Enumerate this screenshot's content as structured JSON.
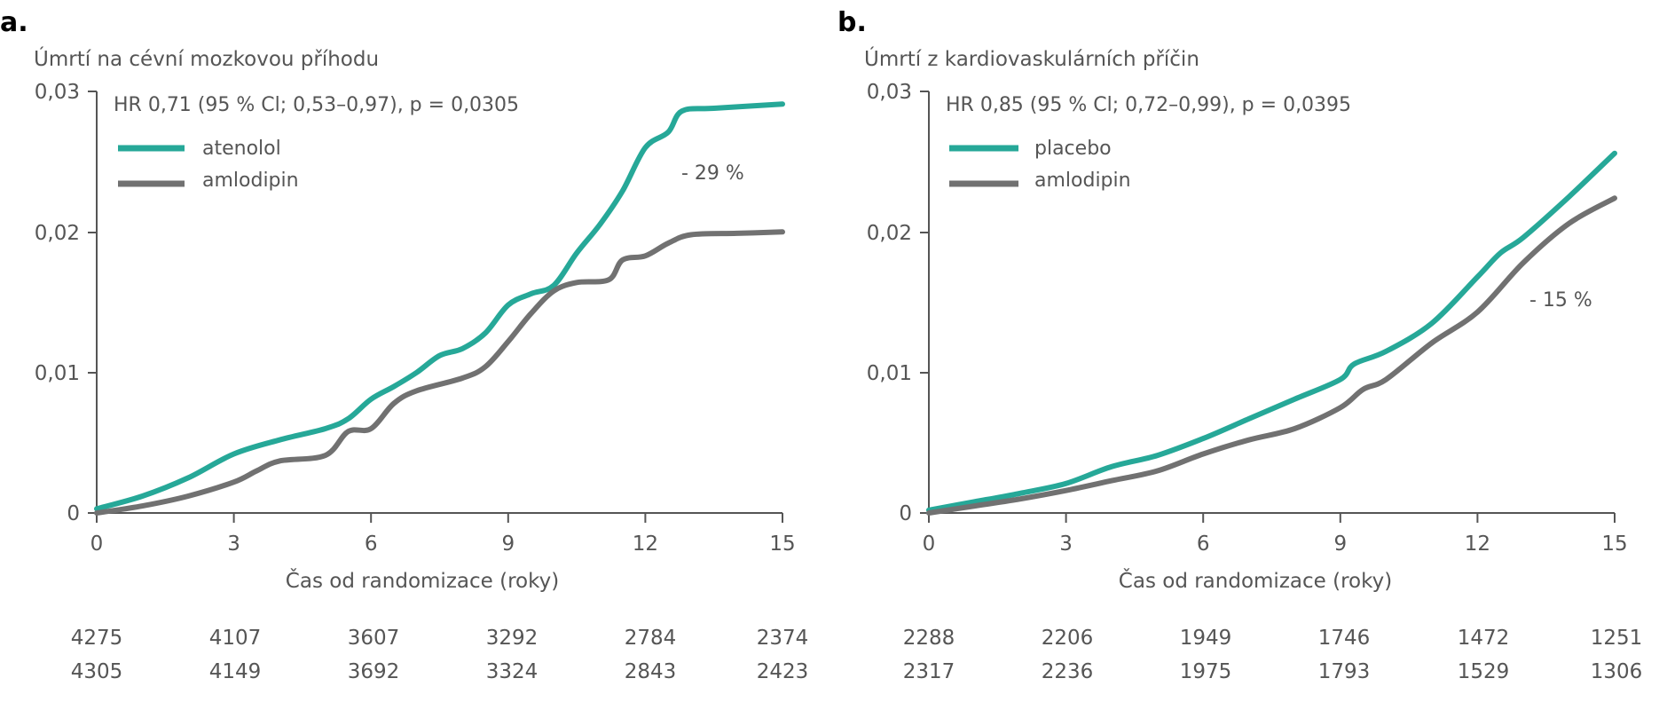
{
  "colors": {
    "teal": "#26a898",
    "gray": "#717171",
    "text": "#555555",
    "axis": "#555555"
  },
  "chart_data": [
    {
      "type": "line",
      "panel_letter": "a.",
      "ylabel": "Úmrtí na cévní mozkovou příhodu",
      "xlabel": "Čas od randomizace (roky)",
      "xlim": [
        0,
        15
      ],
      "ylim": [
        0,
        0.03
      ],
      "x_ticks": [
        0,
        3,
        6,
        9,
        12,
        15
      ],
      "x_tick_labels": [
        "0",
        "3",
        "6",
        "9",
        "12",
        "15"
      ],
      "y_ticks": [
        0,
        0.01,
        0.02,
        0.03
      ],
      "y_tick_labels": [
        "0",
        "0,01",
        "0,02",
        "0,03"
      ],
      "hr_text": "HR 0,71 (95 % Cl; 0,53–0,97), p = 0,0305",
      "reduction_label": "- 29 %",
      "legend_position": "top-left",
      "series": [
        {
          "name": "atenolol",
          "color": "#26a898",
          "x": [
            0,
            1,
            2,
            3,
            4,
            5,
            5.5,
            6,
            6.5,
            7,
            7.5,
            8,
            8.5,
            9,
            9.5,
            10,
            10.5,
            11,
            11.5,
            12,
            12.5,
            12.8,
            13.5,
            15
          ],
          "y": [
            0.0003,
            0.0012,
            0.0025,
            0.0042,
            0.0052,
            0.006,
            0.0067,
            0.0081,
            0.009,
            0.01,
            0.0112,
            0.0117,
            0.0128,
            0.0148,
            0.0156,
            0.0162,
            0.0185,
            0.0205,
            0.0229,
            0.026,
            0.0271,
            0.0286,
            0.0288,
            0.0291
          ]
        },
        {
          "name": "amlodipin",
          "color": "#717171",
          "x": [
            0,
            1,
            2,
            3,
            3.5,
            4,
            5,
            5.5,
            6,
            6.5,
            7,
            8,
            8.5,
            9,
            9.5,
            10,
            10.5,
            11.2,
            11.5,
            12,
            12.5,
            13,
            14,
            15
          ],
          "y": [
            0,
            0.0005,
            0.0012,
            0.0022,
            0.003,
            0.0037,
            0.0041,
            0.0058,
            0.006,
            0.0078,
            0.0087,
            0.0096,
            0.0104,
            0.0122,
            0.0142,
            0.0158,
            0.0164,
            0.0166,
            0.018,
            0.0183,
            0.0192,
            0.0198,
            0.0199,
            0.02
          ]
        }
      ],
      "at_risk": [
        [
          "4275",
          "4107",
          "3607",
          "3292",
          "2784",
          "2374"
        ],
        [
          "4305",
          "4149",
          "3692",
          "3324",
          "2843",
          "2423"
        ]
      ]
    },
    {
      "type": "line",
      "panel_letter": "b.",
      "ylabel": "Úmrtí z kardiovaskulárních příčin",
      "xlabel": "Čas od randomizace (roky)",
      "xlim": [
        0,
        15
      ],
      "ylim": [
        0,
        0.03
      ],
      "x_ticks": [
        0,
        3,
        6,
        9,
        12,
        15
      ],
      "x_tick_labels": [
        "0",
        "3",
        "6",
        "9",
        "12",
        "15"
      ],
      "y_ticks": [
        0,
        0.01,
        0.02,
        0.03
      ],
      "y_tick_labels": [
        "0",
        "0,01",
        "0,02",
        "0,03"
      ],
      "hr_text": "HR 0,85 (95 % Cl; 0,72–0,99), p = 0,0395",
      "reduction_label": "- 15 %",
      "legend_position": "top-left",
      "series": [
        {
          "name": "placebo",
          "color": "#26a898",
          "x": [
            0,
            1,
            2,
            3,
            4,
            5,
            6,
            7,
            8,
            9,
            9.3,
            10,
            11,
            12,
            12.5,
            13,
            14,
            15
          ],
          "y": [
            0.0002,
            0.0008,
            0.0014,
            0.0021,
            0.0033,
            0.0041,
            0.0053,
            0.0067,
            0.0081,
            0.0095,
            0.0106,
            0.0115,
            0.0135,
            0.0168,
            0.0185,
            0.0196,
            0.0225,
            0.0256
          ]
        },
        {
          "name": "amlodipin",
          "color": "#717171",
          "x": [
            0,
            1,
            2,
            3,
            4,
            5,
            6,
            7,
            8,
            9,
            9.5,
            10,
            11,
            12,
            13,
            14,
            15
          ],
          "y": [
            0,
            0.0005,
            0.001,
            0.0016,
            0.0023,
            0.003,
            0.0042,
            0.0052,
            0.006,
            0.0075,
            0.0088,
            0.0095,
            0.0121,
            0.0143,
            0.0178,
            0.0206,
            0.0224
          ]
        }
      ],
      "at_risk": [
        [
          "2288",
          "2206",
          "1949",
          "1746",
          "1472",
          "1251"
        ],
        [
          "2317",
          "2236",
          "1975",
          "1793",
          "1529",
          "1306"
        ]
      ]
    }
  ]
}
